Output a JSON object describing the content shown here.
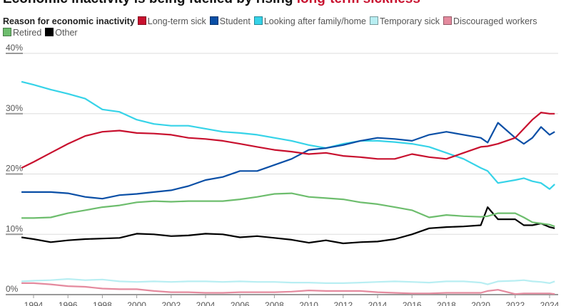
{
  "chart_data": {
    "type": "line",
    "title_prefix": "Economic inactivity is being fuelled by rising ",
    "title_highlight": "long-term sickness",
    "legend_title": "Reason for economic inactivity",
    "legend_placement": "top",
    "grid": true,
    "xlim": [
      1993.3,
      2024.4
    ],
    "ylim": [
      0,
      40
    ],
    "y_ticks": [
      {
        "v": 0,
        "label": "0%"
      },
      {
        "v": 10,
        "label": "10%"
      },
      {
        "v": 20,
        "label": "20%"
      },
      {
        "v": 30,
        "label": "30%"
      },
      {
        "v": 40,
        "label": "40%"
      }
    ],
    "x_ticks": [
      "1994",
      "1996",
      "1998",
      "2000",
      "2002",
      "2004",
      "2006",
      "2008",
      "2010",
      "2012",
      "2014",
      "2016",
      "2018",
      "2020",
      "2022",
      "2024"
    ],
    "x": [
      1993.3,
      1994,
      1995,
      1996,
      1997,
      1998,
      1999,
      2000,
      2001,
      2002,
      2003,
      2004,
      2005,
      2006,
      2007,
      2008,
      2009,
      2010,
      2011,
      2012,
      2013,
      2014,
      2015,
      2016,
      2017,
      2018,
      2019,
      2020,
      2020.4,
      2021,
      2022,
      2022.5,
      2023,
      2023.5,
      2024,
      2024.3
    ],
    "series": [
      {
        "name": "Long-term sick",
        "color": "#c8102e",
        "values": [
          21,
          22,
          23.5,
          25,
          26.3,
          27,
          27.2,
          26.8,
          26.7,
          26.5,
          26,
          25.8,
          25.5,
          25,
          24.5,
          24,
          23.7,
          23.3,
          23.5,
          23,
          22.8,
          22.5,
          22.5,
          23.3,
          22.8,
          22.5,
          23.5,
          24.5,
          24.6,
          25,
          26,
          27.5,
          29,
          30.2,
          30,
          30
        ]
      },
      {
        "name": "Student",
        "color": "#0a4fa6",
        "values": [
          17,
          17,
          17,
          16.8,
          16.2,
          15.9,
          16.5,
          16.7,
          17,
          17.3,
          18,
          19,
          19.5,
          20.5,
          20.5,
          21.5,
          22.5,
          24,
          24.3,
          24.8,
          25.5,
          26,
          25.8,
          25.5,
          26.5,
          27,
          26.5,
          26,
          25.2,
          28.5,
          26,
          25,
          26,
          27.8,
          26.5,
          27
        ]
      },
      {
        "name": "Looking after family/home",
        "color": "#36d3e8",
        "values": [
          35.3,
          34.8,
          34,
          33.3,
          32.5,
          30.7,
          30.3,
          29,
          28.3,
          28,
          28,
          27.5,
          27,
          26.8,
          26.5,
          26,
          25.5,
          24.8,
          24.3,
          25,
          25.5,
          25.5,
          25.3,
          25,
          24.5,
          23.5,
          22.5,
          21,
          20.5,
          18.5,
          19,
          19.3,
          18.8,
          18.5,
          17.5,
          18.3
        ]
      },
      {
        "name": "Temporary sick",
        "color": "#b8eef2",
        "values": [
          2.2,
          2.3,
          2.4,
          2.6,
          2.4,
          2.5,
          2.2,
          2.1,
          2.2,
          2.1,
          2.2,
          2.2,
          2.1,
          2.2,
          2.1,
          2.1,
          2,
          2,
          1.9,
          1.9,
          2,
          2.1,
          2.2,
          2.1,
          2,
          2.2,
          2.2,
          2,
          1.7,
          2.2,
          2.3,
          2.4,
          2.2,
          2.1,
          1.9,
          2.2
        ]
      },
      {
        "name": "Discouraged workers",
        "color": "#e48a9e",
        "values": [
          1.9,
          1.9,
          1.7,
          1.4,
          1.3,
          1.0,
          0.9,
          0.9,
          0.6,
          0.4,
          0.4,
          0.3,
          0.3,
          0.4,
          0.4,
          0.4,
          0.5,
          0.7,
          0.6,
          0.6,
          0.6,
          0.4,
          0.3,
          0.2,
          0.2,
          0.3,
          0.3,
          0.3,
          0.6,
          0.8,
          0.1,
          0.2,
          0.2,
          0.2,
          0.2,
          0.1
        ]
      },
      {
        "name": "Retired",
        "color": "#6dbd6d",
        "values": [
          12.7,
          12.7,
          12.8,
          13.5,
          14,
          14.5,
          14.8,
          15.3,
          15.5,
          15.4,
          15.5,
          15.5,
          15.5,
          15.8,
          16.2,
          16.7,
          16.8,
          16.2,
          16,
          15.8,
          15.3,
          15,
          14.5,
          14,
          12.8,
          13.2,
          13,
          12.9,
          13,
          13.5,
          13.5,
          12.8,
          12,
          11.8,
          11.6,
          11.3
        ]
      },
      {
        "name": "Other",
        "color": "#000000",
        "values": [
          9.5,
          9.2,
          8.7,
          9,
          9.2,
          9.3,
          9.4,
          10.1,
          10,
          9.7,
          9.8,
          10.1,
          10,
          9.5,
          9.7,
          9.4,
          9.1,
          8.6,
          9,
          8.5,
          8.7,
          8.8,
          9.2,
          10,
          11,
          11.2,
          11.3,
          11.5,
          14.5,
          12.5,
          12.5,
          11.5,
          11.5,
          11.8,
          11.2,
          11
        ]
      }
    ]
  }
}
